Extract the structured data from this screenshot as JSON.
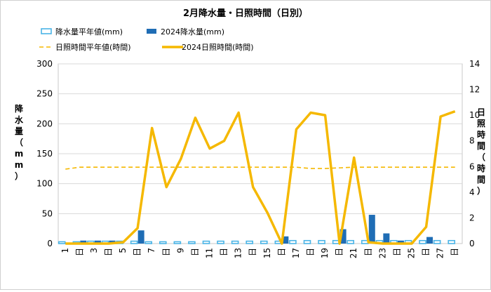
{
  "chart_data": {
    "type": "bar-line",
    "title": "2月降水量・日照時間（日別）",
    "ylabel_left": "降水量（mm）",
    "ylabel_right": "日照時間（時間）",
    "ylim_left": [
      0,
      300
    ],
    "ylim_right": [
      0,
      14
    ],
    "yticks_left": [
      "0",
      "50",
      "100",
      "150",
      "200",
      "250",
      "300"
    ],
    "yticks_right": [
      "0",
      "2",
      "4",
      "6",
      "8",
      "10",
      "12",
      "14"
    ],
    "grid": true,
    "legend_position": "top",
    "categories": [
      "1",
      "日",
      "3",
      "日",
      "5",
      "日",
      "7",
      "日",
      "9",
      "日",
      "11",
      "日",
      "13",
      "日",
      "15",
      "日",
      "17",
      "日",
      "19",
      "日",
      "21",
      "日",
      "23",
      "日",
      "25",
      "日",
      "27",
      "日"
    ],
    "x_tick_labels": [
      "1",
      "日",
      "3",
      "日",
      "5",
      "日",
      "7",
      "日",
      "9",
      "日",
      "11",
      "日",
      "13",
      "日",
      "15",
      "日",
      "17",
      "日",
      "19",
      "日",
      "21",
      "日",
      "23",
      "日",
      "25",
      "日",
      "27",
      "日"
    ],
    "series": [
      {
        "name": "降水量平年値(mm)",
        "type": "bar",
        "axis": "left",
        "color": "#4ab4e6",
        "values": [
          3,
          3,
          4,
          4,
          4,
          4,
          3,
          3,
          3,
          3,
          4,
          4,
          4,
          4,
          4,
          4,
          5,
          5,
          5,
          5,
          5,
          5,
          5,
          5,
          5,
          5,
          5,
          5
        ]
      },
      {
        "name": "2024降水量(mm)",
        "type": "bar",
        "axis": "left",
        "color": "#1f6db5",
        "values": [
          0,
          5,
          5,
          5,
          0,
          22,
          0,
          0,
          0,
          0,
          0,
          0,
          0,
          0,
          0,
          12,
          0,
          0,
          0,
          24,
          0,
          48,
          17,
          5,
          0,
          11,
          0,
          0
        ]
      },
      {
        "name": "日照時間平年値(時間)",
        "type": "line",
        "axis": "right",
        "color": "#f5b800",
        "dashed": true,
        "values": [
          5.8,
          5.95,
          5.95,
          5.95,
          5.95,
          5.95,
          5.95,
          5.95,
          5.95,
          5.95,
          5.95,
          5.95,
          5.95,
          5.95,
          5.95,
          5.95,
          5.95,
          5.85,
          5.85,
          5.9,
          5.95,
          5.95,
          5.95,
          5.95,
          5.95,
          5.95,
          5.95,
          5.95
        ]
      },
      {
        "name": "2024日照時間(時間)",
        "type": "line",
        "axis": "right",
        "color": "#f5b800",
        "dashed": false,
        "values": [
          0,
          0,
          0,
          0,
          0.1,
          1.2,
          9.0,
          4.4,
          6.6,
          9.8,
          7.4,
          8.0,
          10.2,
          4.4,
          2.4,
          0,
          8.9,
          10.2,
          10.0,
          0,
          6.7,
          0.1,
          0,
          0,
          0,
          1.3,
          9.9,
          10.3
        ]
      }
    ]
  }
}
